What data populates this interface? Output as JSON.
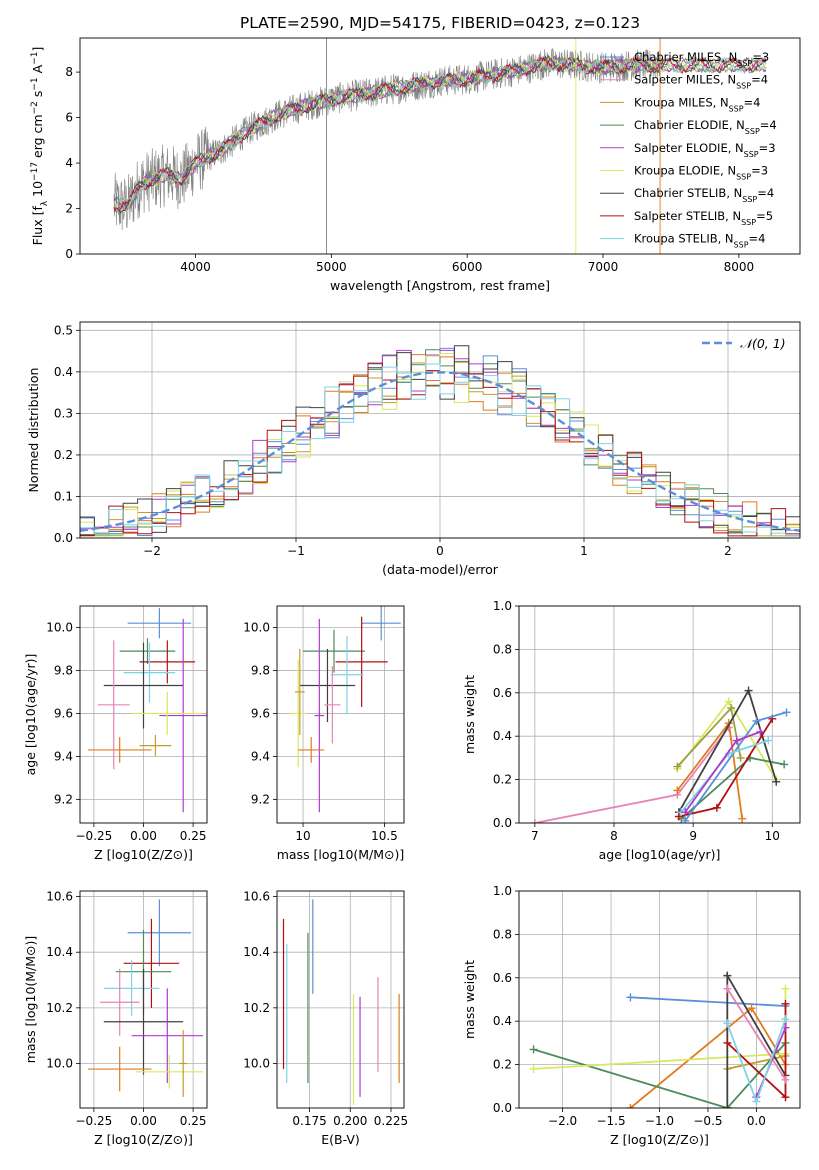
{
  "figure": {
    "title": "PLATE=2590, MJD=54175, FIBERID=0423, z=0.123"
  },
  "colors": {
    "blue": "#5b8fd9",
    "orange": "#e07b1e",
    "ochre": "#c89a2a",
    "green": "#4f8a5a",
    "purple": "#b03ad0",
    "yellow": "#d8e860",
    "dark": "#404040",
    "red": "#b01010",
    "cyan": "#7fd3e8",
    "pink": "#e882b8",
    "olive": "#9aa040",
    "gray": "#7f7f7f"
  },
  "chart_data": [
    {
      "id": "spectrum",
      "type": "line",
      "xlabel": "wavelength [Angstrom, rest frame]",
      "ylabel": "Flux [f_λ 10^-17 erg cm^-2 s^-1 A^-1]",
      "xlim": [
        3150,
        8450
      ],
      "ylim": [
        0,
        9.5
      ],
      "xticks": [
        4000,
        5000,
        6000,
        7000,
        8000
      ],
      "yticks": [
        0,
        2,
        4,
        6,
        8
      ],
      "grid": false,
      "legend_position": "top-right",
      "observed_envelope": {
        "x": [
          3400,
          3500,
          3600,
          3700,
          3800,
          3900,
          4000,
          4200,
          4400,
          4600,
          4800,
          5000,
          5200,
          5400,
          5600,
          5800,
          6000,
          6200,
          6400,
          6600,
          6800,
          7000,
          7200,
          7400
        ],
        "y": [
          2.2,
          2.1,
          3.1,
          3.3,
          3.5,
          3.3,
          4.0,
          4.6,
          5.5,
          6.1,
          6.5,
          6.8,
          7.0,
          7.2,
          7.4,
          7.6,
          7.7,
          7.9,
          8.1,
          8.4,
          8.3,
          8.2,
          8.3,
          8.3
        ]
      },
      "series": [
        {
          "name": "Chabrier MILES, N_SSP=3",
          "n": 3,
          "color": "blue"
        },
        {
          "name": "Salpeter MILES, N_SSP=4",
          "n": 4,
          "color": "pink"
        },
        {
          "name": "Kroupa MILES, N_SSP=4",
          "n": 4,
          "color": "ochre"
        },
        {
          "name": "Chabrier ELODIE, N_SSP=4",
          "n": 4,
          "color": "green"
        },
        {
          "name": "Salpeter ELODIE, N_SSP=3",
          "n": 3,
          "color": "purple"
        },
        {
          "name": "Kroupa ELODIE, N_SSP=3",
          "n": 3,
          "color": "yellow"
        },
        {
          "name": "Chabrier STELIB, N_SSP=4",
          "n": 4,
          "color": "dark"
        },
        {
          "name": "Salpeter STELIB, N_SSP=5",
          "n": 5,
          "color": "red"
        },
        {
          "name": "Kroupa STELIB, N_SSP=4",
          "n": 4,
          "color": "cyan"
        }
      ]
    },
    {
      "id": "residuals",
      "type": "line",
      "xlabel": "(data-model)/error",
      "ylabel": "Normed distribution",
      "xlim": [
        -2.5,
        2.5
      ],
      "ylim": [
        0,
        0.52
      ],
      "xticks": [
        -2,
        -1,
        0,
        1,
        2
      ],
      "yticks": [
        0.0,
        0.1,
        0.2,
        0.3,
        0.4,
        0.5
      ],
      "grid": true,
      "legend_position": "top-right",
      "reference": {
        "name": "𝒩(0, 1)",
        "color": "blue"
      },
      "histogram_bins": {
        "start": -2.5,
        "width": 0.1,
        "count": 50
      },
      "histogram_colors": [
        "blue",
        "orange",
        "ochre",
        "green",
        "purple",
        "yellow",
        "dark",
        "red",
        "cyan"
      ]
    },
    {
      "id": "age_vs_Z",
      "type": "scatter",
      "xlabel": "Z [log10(Z/Z⊙)]",
      "ylabel": "age [log10(age/yr)]",
      "xlim": [
        -0.32,
        0.32
      ],
      "ylim": [
        9.09,
        10.1
      ],
      "xticks": [
        -0.25,
        0.0,
        0.25
      ],
      "xtick_labels": [
        "−0.25",
        "0.00",
        "0.25"
      ],
      "yticks": [
        9.2,
        9.4,
        9.6,
        9.8,
        10.0
      ],
      "grid": true,
      "points": [
        {
          "color": "blue",
          "x": 0.08,
          "xerr": 0.16,
          "y": 10.02,
          "yerr": 0.07
        },
        {
          "color": "green",
          "x": 0.02,
          "xerr": 0.14,
          "y": 9.89,
          "yerr": 0.06
        },
        {
          "color": "red",
          "x": 0.12,
          "xerr": 0.14,
          "y": 9.84,
          "yerr": 0.1
        },
        {
          "color": "cyan",
          "x": 0.03,
          "xerr": 0.13,
          "y": 9.79,
          "yerr": 0.14
        },
        {
          "color": "dark",
          "x": 0.0,
          "xerr": 0.2,
          "y": 9.73,
          "yerr": 0.2
        },
        {
          "color": "pink",
          "x": -0.15,
          "xerr": 0.08,
          "y": 9.64,
          "yerr": 0.3
        },
        {
          "color": "purple",
          "x": 0.2,
          "xerr": 0.12,
          "y": 9.59,
          "yerr": 0.45
        },
        {
          "color": "yellow",
          "x": 0.12,
          "xerr": 0.18,
          "y": 9.6,
          "yerr": 0.1
        },
        {
          "color": "orange",
          "x": -0.12,
          "xerr": 0.16,
          "y": 9.43,
          "yerr": 0.06
        },
        {
          "color": "ochre",
          "x": 0.06,
          "xerr": 0.08,
          "y": 9.45,
          "yerr": 0.05
        }
      ]
    },
    {
      "id": "age_vs_mass",
      "type": "scatter",
      "xlabel": "mass [log10(M/M⊙)]",
      "xlim": [
        9.84,
        10.62
      ],
      "ylim": [
        9.09,
        10.1
      ],
      "xticks": [
        10.0,
        10.5
      ],
      "xtick_labels": [
        "10",
        "10.5"
      ],
      "yticks": [
        9.2,
        9.4,
        9.6,
        9.8,
        10.0
      ],
      "grid": true,
      "points": [
        {
          "color": "blue",
          "x": 10.48,
          "xerr": 0.12,
          "y": 10.02,
          "yerr": 0.08
        },
        {
          "color": "green",
          "x": 10.19,
          "xerr": 0.19,
          "y": 9.89,
          "yerr": 0.1
        },
        {
          "color": "red",
          "x": 10.36,
          "xerr": 0.16,
          "y": 9.84,
          "yerr": 0.21
        },
        {
          "color": "cyan",
          "x": 10.27,
          "xerr": 0.1,
          "y": 9.78,
          "yerr": 0.18
        },
        {
          "color": "dark",
          "x": 10.15,
          "xerr": 0.17,
          "y": 9.73,
          "yerr": 0.17
        },
        {
          "color": "pink",
          "x": 10.18,
          "xerr": 0.05,
          "y": 9.64,
          "yerr": 0.18
        },
        {
          "color": "purple",
          "x": 10.1,
          "xerr": 0.03,
          "y": 9.59,
          "yerr": 0.45
        },
        {
          "color": "yellow",
          "x": 9.97,
          "xerr": 0.05,
          "y": 9.6,
          "yerr": 0.25
        },
        {
          "color": "orange",
          "x": 10.05,
          "xerr": 0.08,
          "y": 9.43,
          "yerr": 0.06
        },
        {
          "color": "ochre",
          "x": 9.98,
          "xerr": 0.03,
          "y": 9.7,
          "yerr": 0.2
        }
      ]
    },
    {
      "id": "weight_vs_age",
      "type": "line",
      "xlabel": "age [log10(age/yr)]",
      "ylabel": "mass weight",
      "xlim": [
        6.8,
        10.35
      ],
      "ylim": [
        0,
        1.0
      ],
      "xticks": [
        7,
        8,
        9,
        10
      ],
      "yticks": [
        0.0,
        0.2,
        0.4,
        0.6,
        0.8,
        1.0
      ],
      "grid": true,
      "series": [
        {
          "color": "pink",
          "x": [
            7.0,
            8.8,
            9.45
          ],
          "y": [
            0.0,
            0.13,
            0.44
          ]
        },
        {
          "color": "orange",
          "x": [
            8.8,
            9.45,
            9.62
          ],
          "y": [
            0.15,
            0.46,
            0.02
          ]
        },
        {
          "color": "yellow",
          "x": [
            8.8,
            9.45,
            10.05
          ],
          "y": [
            0.25,
            0.56,
            0.2
          ]
        },
        {
          "color": "olive",
          "x": [
            8.8,
            9.48,
            9.6
          ],
          "y": [
            0.26,
            0.53,
            0.3
          ]
        },
        {
          "color": "green",
          "x": [
            8.85,
            9.72,
            10.15
          ],
          "y": [
            0.02,
            0.3,
            0.27
          ]
        },
        {
          "color": "dark",
          "x": [
            8.82,
            9.7,
            10.05
          ],
          "y": [
            0.05,
            0.61,
            0.19
          ]
        },
        {
          "color": "red",
          "x": [
            8.82,
            9.3,
            10.0
          ],
          "y": [
            0.03,
            0.07,
            0.48
          ]
        },
        {
          "color": "blue",
          "x": [
            8.9,
            9.8,
            10.18
          ],
          "y": [
            0.01,
            0.47,
            0.51
          ]
        },
        {
          "color": "cyan",
          "x": [
            8.85,
            9.45,
            9.95
          ],
          "y": [
            0.05,
            0.32,
            0.38
          ]
        },
        {
          "color": "purple",
          "x": [
            8.9,
            9.55,
            9.85
          ],
          "y": [
            0.05,
            0.38,
            0.42
          ]
        }
      ]
    },
    {
      "id": "mass_vs_Z",
      "type": "scatter",
      "xlabel": "Z [log10(Z/Z⊙)]",
      "ylabel": "mass [log10(M/M⊙)]",
      "xlim": [
        -0.32,
        0.32
      ],
      "ylim": [
        9.84,
        10.62
      ],
      "xticks": [
        -0.25,
        0.0,
        0.25
      ],
      "xtick_labels": [
        "−0.25",
        "0.00",
        "0.25"
      ],
      "yticks": [
        10.0,
        10.2,
        10.4,
        10.6
      ],
      "grid": true,
      "points": [
        {
          "color": "blue",
          "x": 0.08,
          "xerr": 0.16,
          "y": 10.47,
          "yerr": 0.12
        },
        {
          "color": "red",
          "x": 0.04,
          "xerr": 0.14,
          "y": 10.36,
          "yerr": 0.16
        },
        {
          "color": "green",
          "x": 0.0,
          "xerr": 0.14,
          "y": 10.33,
          "yerr": 0.15
        },
        {
          "color": "cyan",
          "x": -0.06,
          "xerr": 0.14,
          "y": 10.27,
          "yerr": 0.1
        },
        {
          "color": "pink",
          "x": -0.12,
          "xerr": 0.1,
          "y": 10.22,
          "yerr": 0.12
        },
        {
          "color": "dark",
          "x": 0.0,
          "xerr": 0.2,
          "y": 10.15,
          "yerr": 0.19
        },
        {
          "color": "purple",
          "x": 0.12,
          "xerr": 0.18,
          "y": 10.1,
          "yerr": 0.17
        },
        {
          "color": "orange",
          "x": -0.12,
          "xerr": 0.16,
          "y": 9.98,
          "yerr": 0.08
        },
        {
          "color": "yellow",
          "x": 0.13,
          "xerr": 0.17,
          "y": 9.97,
          "yerr": 0.06
        },
        {
          "color": "ochre",
          "x": 0.2,
          "xerr": 0.02,
          "y": 10.0,
          "yerr": 0.12
        }
      ]
    },
    {
      "id": "mass_vs_ebv",
      "type": "scatter",
      "xlabel": "E(B-V)",
      "xlim": [
        0.155,
        0.233
      ],
      "ylim": [
        9.84,
        10.62
      ],
      "xticks": [
        0.175,
        0.2,
        0.225
      ],
      "xtick_labels": [
        "0.175",
        "0.200",
        "0.225"
      ],
      "yticks": [
        10.0,
        10.2,
        10.4,
        10.6
      ],
      "grid": true,
      "points": [
        {
          "color": "red",
          "x": 0.159,
          "y": 10.25,
          "yerr": 0.27
        },
        {
          "color": "cyan",
          "x": 0.161,
          "y": 10.18,
          "yerr": 0.25
        },
        {
          "color": "green",
          "x": 0.174,
          "y": 10.2,
          "yerr": 0.27
        },
        {
          "color": "blue",
          "x": 0.177,
          "y": 10.42,
          "yerr": 0.17
        },
        {
          "color": "yellow",
          "x": 0.202,
          "y": 10.05,
          "yerr": 0.2
        },
        {
          "color": "purple",
          "x": 0.206,
          "y": 10.06,
          "yerr": 0.18
        },
        {
          "color": "pink",
          "x": 0.217,
          "y": 10.14,
          "yerr": 0.17
        },
        {
          "color": "orange",
          "x": 0.23,
          "y": 10.09,
          "yerr": 0.16
        }
      ]
    },
    {
      "id": "weight_vs_Z",
      "type": "line",
      "xlabel": "Z [log10(Z/Z⊙)]",
      "ylabel": "mass weight",
      "xlim": [
        -2.45,
        0.45
      ],
      "ylim": [
        0,
        1.0
      ],
      "xticks": [
        -2.0,
        -1.5,
        -1.0,
        -0.5,
        0.0
      ],
      "xtick_labels": [
        "−2.0",
        "−1.5",
        "−1.0",
        "−0.5",
        "0.0"
      ],
      "yticks": [
        0.0,
        0.2,
        0.4,
        0.6,
        0.8,
        1.0
      ],
      "grid": true,
      "series": [
        {
          "color": "blue",
          "x": [
            -1.3,
            0.3
          ],
          "y": [
            0.51,
            0.47
          ]
        },
        {
          "color": "orange",
          "x": [
            -1.3,
            -0.05,
            0.3
          ],
          "y": [
            0.0,
            0.46,
            0.2
          ]
        },
        {
          "color": "green",
          "x": [
            -2.3,
            -0.3,
            0.3
          ],
          "y": [
            0.27,
            0.0,
            0.3
          ]
        },
        {
          "color": "yellow",
          "x": [
            -2.3,
            0.3,
            0.3
          ],
          "y": [
            0.18,
            0.25,
            0.55
          ]
        },
        {
          "color": "ochre",
          "x": [
            -0.3,
            0.3
          ],
          "y": [
            0.18,
            0.24
          ]
        },
        {
          "color": "dark",
          "x": [
            -0.3,
            -0.3,
            0.3
          ],
          "y": [
            0.0,
            0.61,
            0.15
          ]
        },
        {
          "color": "red",
          "x": [
            -0.3,
            0.3,
            0.3
          ],
          "y": [
            0.3,
            0.05,
            0.48
          ]
        },
        {
          "color": "pink",
          "x": [
            -0.3,
            0.3
          ],
          "y": [
            0.55,
            0.13
          ]
        },
        {
          "color": "purple",
          "x": [
            0.0,
            0.3
          ],
          "y": [
            0.05,
            0.37
          ]
        },
        {
          "color": "cyan",
          "x": [
            -0.3,
            0.0,
            0.3
          ],
          "y": [
            0.39,
            0.03,
            0.41
          ]
        }
      ]
    }
  ]
}
